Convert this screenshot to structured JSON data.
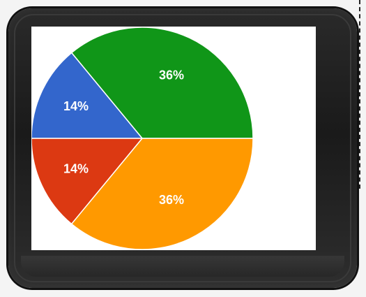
{
  "chart_data": {
    "type": "pie",
    "slices": [
      {
        "label": "36%",
        "value": 36,
        "color": "#109618"
      },
      {
        "label": "14%",
        "value": 14,
        "color": "#3366cc"
      },
      {
        "label": "14%",
        "value": 14,
        "color": "#dc3912"
      },
      {
        "label": "36%",
        "value": 36,
        "color": "#ff9900"
      }
    ],
    "start_angle_deg": 0,
    "direction": "clockwise",
    "legend": "none"
  }
}
